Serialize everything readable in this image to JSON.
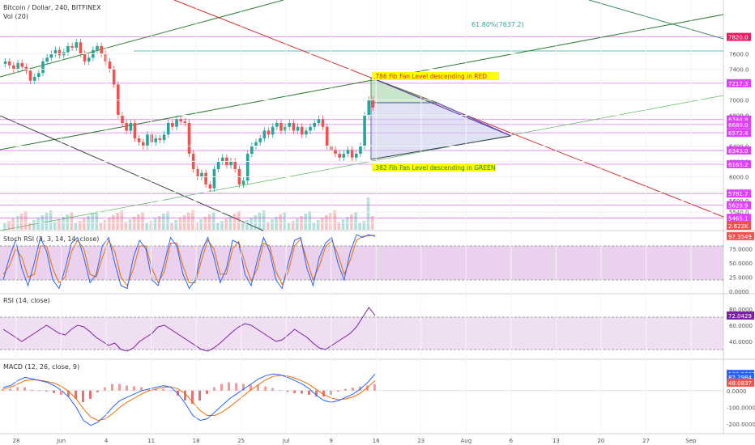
{
  "header": {
    "symbol_title": "Bitcoin / Dollar, 240, BITFINEX",
    "volume_label": "Vol (20)"
  },
  "colors": {
    "up": "#26a69a",
    "down": "#ef5350",
    "hline": "#e040fb",
    "fib_line": "#26a69a",
    "green_channel": "#2e7d32",
    "red_diag": "#d32f2f",
    "dark_diag": "#424242",
    "light_green": "#66bb6a",
    "top_right_teal": "#2e8b57",
    "stoch_k": "#2962ff",
    "stoch_d": "#ef6c00",
    "rsi": "#7b1fa2",
    "macd": "#2962ff",
    "signal": "#ef6c00",
    "tag_magenta": "#e91e63",
    "band_fill": "#e1bee7"
  },
  "annotations": {
    "fib618": "61.80%(7637.2)",
    "fib786": ".786 Fib Fan Level descending in RED",
    "fib382": ".382 Fib Fan Level descending in GREEN"
  },
  "chart_data": [
    {
      "type": "candlestick",
      "pane": "price",
      "yrange": [
        5300,
        8300
      ],
      "x_axis_labels": [
        "28",
        "Jun",
        "4",
        "11",
        "18",
        "25",
        "Jul",
        "9",
        "16",
        "23",
        "Aug",
        "6",
        "13",
        "20",
        "27",
        "Sep"
      ],
      "y_tick_labels": [
        "7600.0",
        "7400.0",
        "7000.0",
        "6800.0",
        "6400.0",
        "6200.0",
        "6000.0",
        "5800.0",
        "5690.0",
        "5540.0",
        "5400.0"
      ],
      "price_tags": [
        "7820.0",
        "7217.3",
        "6744.8",
        "6680.0",
        "6572.4",
        "6343.0",
        "6163.2",
        "5781.7",
        "5629.9",
        "5465.1",
        "2.622K"
      ],
      "closes": [
        7500,
        7450,
        7400,
        7480,
        7430,
        7380,
        7250,
        7300,
        7350,
        7500,
        7550,
        7600,
        7650,
        7580,
        7620,
        7700,
        7680,
        7750,
        7600,
        7500,
        7550,
        7650,
        7700,
        7600,
        7500,
        7400,
        7200,
        6800,
        6700,
        6600,
        6700,
        6500,
        6450,
        6400,
        6550,
        6450,
        6500,
        6480,
        6550,
        6700,
        6650,
        6750,
        6720,
        6700,
        6300,
        6100,
        6000,
        6050,
        5900,
        5850,
        6100,
        6200,
        6250,
        6150,
        6200,
        6100,
        5900,
        5950,
        6300,
        6400,
        6450,
        6500,
        6600,
        6550,
        6650,
        6700,
        6600,
        6650,
        6700,
        6600,
        6650,
        6550,
        6600,
        6650,
        6700,
        6750,
        6650,
        6400,
        6350,
        6300,
        6250,
        6300,
        6350,
        6250,
        6300,
        6400,
        6800,
        7000,
        6900
      ],
      "volume_spike_label": "2.622K"
    },
    {
      "type": "line",
      "pane": "stoch_rsi",
      "label": "Stoch RSI (3, 3, 14, 14, close)",
      "yrange": [
        0,
        100
      ],
      "y_tick_labels": [
        "75.0000",
        "50.0000",
        "25.0000",
        "0.0000"
      ],
      "band": [
        20,
        80
      ],
      "tags": [
        "97.3549"
      ],
      "series": [
        {
          "values": [
            20,
            60,
            90,
            40,
            10,
            50,
            95,
            70,
            20,
            5,
            40,
            85,
            95,
            60,
            15,
            30,
            80,
            95,
            50,
            10,
            5,
            60,
            90,
            75,
            20,
            10,
            50,
            95,
            80,
            30,
            5,
            20,
            70,
            95,
            60,
            15,
            40,
            90,
            85,
            30,
            10,
            55,
            95,
            70,
            20,
            5,
            50,
            90,
            95,
            40,
            10,
            60,
            85,
            95,
            50,
            20,
            70,
            100,
            95,
            100,
            97
          ]
        },
        {
          "values": [
            30,
            45,
            75,
            60,
            25,
            30,
            80,
            80,
            40,
            15,
            25,
            70,
            90,
            75,
            30,
            25,
            60,
            90,
            70,
            25,
            10,
            40,
            80,
            80,
            40,
            15,
            35,
            85,
            85,
            45,
            15,
            15,
            55,
            90,
            75,
            30,
            30,
            75,
            88,
            50,
            18,
            40,
            85,
            80,
            35,
            12,
            35,
            80,
            92,
            55,
            20,
            45,
            78,
            90,
            65,
            30,
            55,
            90,
            97,
            98,
            99
          ]
        }
      ]
    },
    {
      "type": "line",
      "pane": "rsi",
      "label": "RSI (14, close)",
      "yrange": [
        20,
        90
      ],
      "y_tick_labels": [
        "80.0000",
        "60.0000",
        "40.0000"
      ],
      "band": [
        30,
        70
      ],
      "tags": [
        "72.0429"
      ],
      "values": [
        55,
        50,
        45,
        40,
        45,
        50,
        55,
        60,
        55,
        50,
        48,
        55,
        60,
        58,
        52,
        45,
        40,
        35,
        38,
        30,
        28,
        32,
        40,
        45,
        50,
        58,
        60,
        55,
        50,
        45,
        40,
        35,
        30,
        28,
        32,
        38,
        45,
        52,
        58,
        62,
        60,
        55,
        50,
        45,
        40,
        42,
        48,
        55,
        50,
        45,
        38,
        32,
        30,
        35,
        40,
        45,
        50,
        58,
        70,
        82,
        72
      ]
    },
    {
      "type": "line",
      "pane": "macd",
      "label": "MACD (12, 26, close, 9)",
      "yrange": [
        -250,
        150
      ],
      "y_tick_labels": [
        "100.0000",
        "0.0000",
        "-100.0000",
        "-200.0000"
      ],
      "tags": [
        "100.3601",
        "82.2984",
        "48.0837"
      ],
      "series": [
        {
          "name": "MACD",
          "values": [
            20,
            30,
            60,
            80,
            70,
            60,
            50,
            30,
            0,
            -40,
            -100,
            -180,
            -210,
            -190,
            -150,
            -100,
            -60,
            -40,
            -20,
            0,
            10,
            20,
            30,
            20,
            -20,
            -80,
            -150,
            -180,
            -170,
            -130,
            -90,
            -50,
            -20,
            10,
            40,
            70,
            90,
            100,
            95,
            80,
            60,
            40,
            10,
            -30,
            -60,
            -70,
            -60,
            -40,
            -20,
            10,
            50,
            100
          ]
        },
        {
          "name": "Signal",
          "values": [
            10,
            20,
            40,
            60,
            65,
            62,
            55,
            45,
            25,
            -5,
            -50,
            -110,
            -160,
            -180,
            -170,
            -140,
            -100,
            -70,
            -45,
            -20,
            0,
            10,
            20,
            22,
            10,
            -20,
            -70,
            -120,
            -150,
            -150,
            -130,
            -100,
            -65,
            -30,
            5,
            35,
            65,
            85,
            92,
            88,
            75,
            58,
            35,
            5,
            -25,
            -45,
            -55,
            -50,
            -38,
            -15,
            20,
            60
          ]
        }
      ]
    }
  ]
}
